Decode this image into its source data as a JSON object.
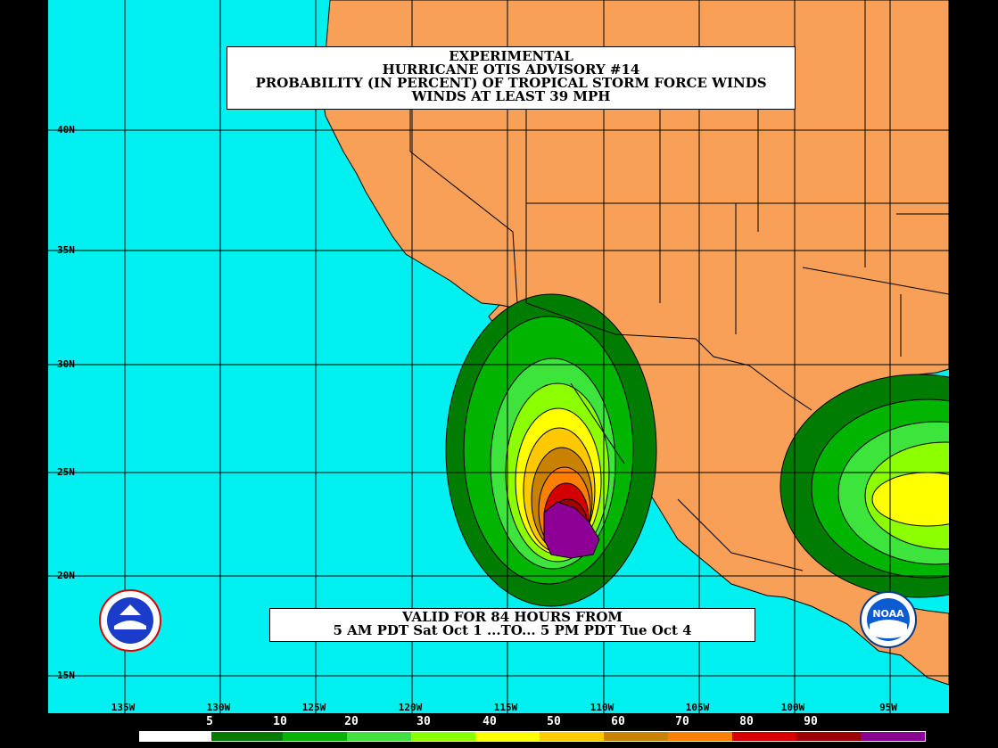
{
  "title": {
    "line1": "EXPERIMENTAL",
    "line2": "HURRICANE OTIS ADVISORY #14",
    "line3": "PROBABILITY (IN PERCENT) OF TROPICAL STORM FORCE WINDS",
    "line4": "WINDS AT LEAST 39 MPH"
  },
  "valid": {
    "line1": "VALID FOR 84 HOURS FROM",
    "line2": "5 AM PDT Sat Oct 1 ...TO... 5 PM PDT Tue Oct 4"
  },
  "lat_labels": [
    "40N",
    "35N",
    "30N",
    "25N",
    "20N",
    "15N"
  ],
  "lon_labels": [
    "135W",
    "130W",
    "125W",
    "120W",
    "115W",
    "110W",
    "105W",
    "100W",
    "95W"
  ],
  "legend": {
    "values": [
      "5",
      "10",
      "20",
      "30",
      "40",
      "50",
      "60",
      "70",
      "80",
      "90"
    ],
    "colors": [
      "#ffffff",
      "#007c00",
      "#00b400",
      "#3ce43c",
      "#8cff00",
      "#ffff00",
      "#ffc800",
      "#c88200",
      "#ff8000",
      "#d20000",
      "#a00000",
      "#8c0096"
    ]
  },
  "colors": {
    "ocean": "#00f0f0",
    "land": "#f8a058",
    "grid": "#000000"
  },
  "logos": {
    "left": "nws-logo",
    "right": "noaa-logo",
    "right_text": "NOAA"
  }
}
